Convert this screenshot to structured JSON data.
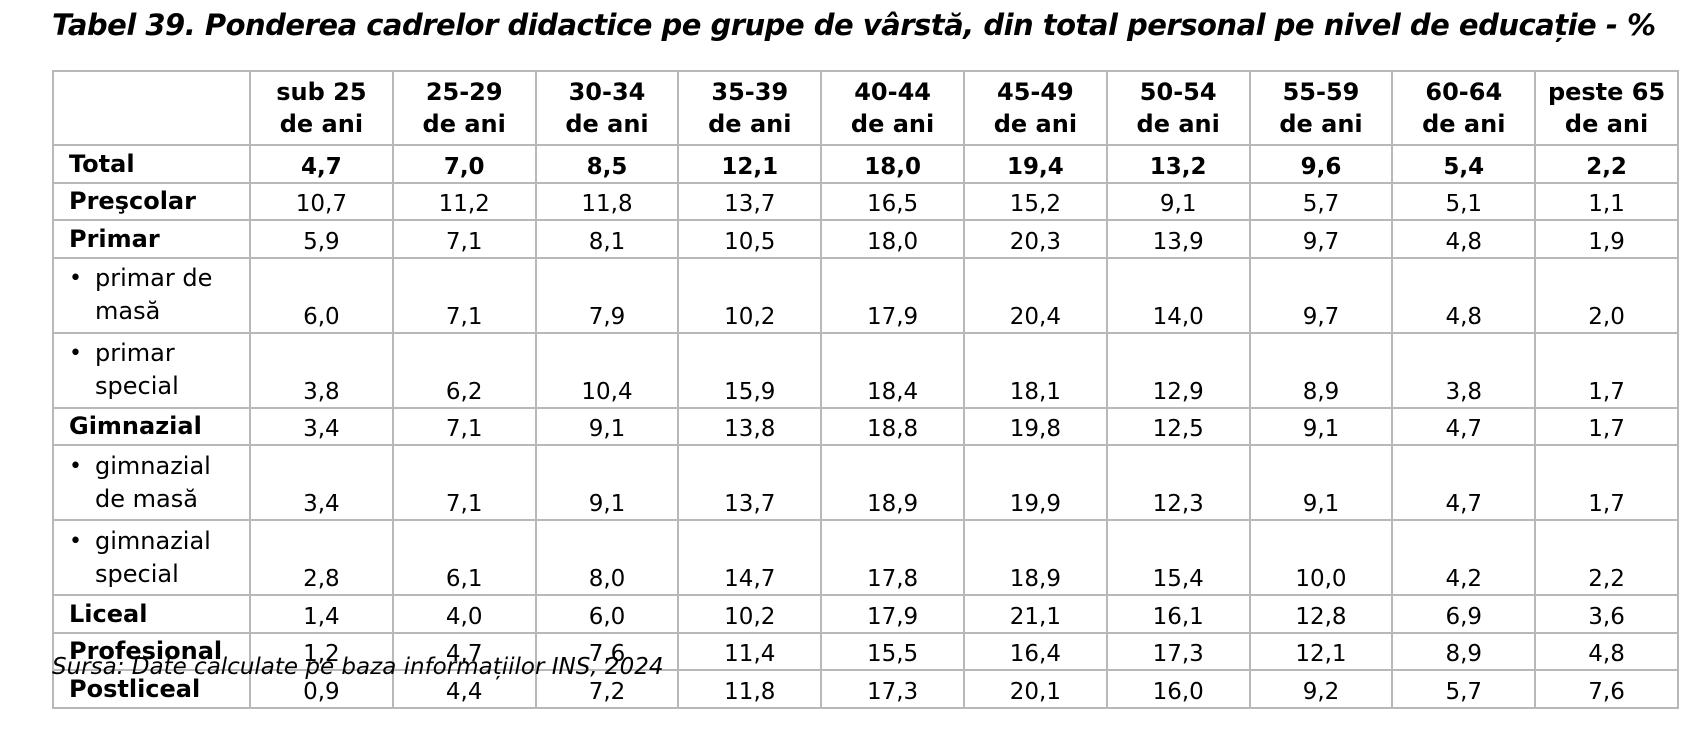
{
  "title": "Tabel 39. Ponderea cadrelor didactice pe grupe de vârstă, din total personal pe nivel de educație - %",
  "columns": [
    {
      "line1": "sub 25",
      "line2": "de ani"
    },
    {
      "line1": "25-29",
      "line2": "de ani"
    },
    {
      "line1": "30-34",
      "line2": "de ani"
    },
    {
      "line1": "35-39",
      "line2": "de ani"
    },
    {
      "line1": "40-44",
      "line2": "de ani"
    },
    {
      "line1": "45-49",
      "line2": "de ani"
    },
    {
      "line1": "50-54",
      "line2": "de ani"
    },
    {
      "line1": "55-59",
      "line2": "de ani"
    },
    {
      "line1": "60-64",
      "line2": "de ani"
    },
    {
      "line1": "peste 65",
      "line2": "de ani"
    }
  ],
  "rows": [
    {
      "label": "Total",
      "values": [
        "4,7",
        "7,0",
        "8,5",
        "12,1",
        "18,0",
        "19,4",
        "13,2",
        "9,6",
        "5,4",
        "2,2"
      ]
    },
    {
      "label": "Preşcolar",
      "values": [
        "10,7",
        "11,2",
        "11,8",
        "13,7",
        "16,5",
        "15,2",
        "9,1",
        "5,7",
        "5,1",
        "1,1"
      ]
    },
    {
      "label": "Primar",
      "values": [
        "5,9",
        "7,1",
        "8,1",
        "10,5",
        "18,0",
        "20,3",
        "13,9",
        "9,7",
        "4,8",
        "1,9"
      ]
    },
    {
      "bullet": "•",
      "label_line1": "primar de",
      "label_line2": "masă",
      "values": [
        "6,0",
        "7,1",
        "7,9",
        "10,2",
        "17,9",
        "20,4",
        "14,0",
        "9,7",
        "4,8",
        "2,0"
      ]
    },
    {
      "bullet": "•",
      "label_line1": "primar",
      "label_line2": "special",
      "values": [
        "3,8",
        "6,2",
        "10,4",
        "15,9",
        "18,4",
        "18,1",
        "12,9",
        "8,9",
        "3,8",
        "1,7"
      ]
    },
    {
      "label": "Gimnazial",
      "values": [
        "3,4",
        "7,1",
        "9,1",
        "13,8",
        "18,8",
        "19,8",
        "12,5",
        "9,1",
        "4,7",
        "1,7"
      ]
    },
    {
      "bullet": "•",
      "label_line1": "gimnazial",
      "label_line2": "de masă",
      "values": [
        "3,4",
        "7,1",
        "9,1",
        "13,7",
        "18,9",
        "19,9",
        "12,3",
        "9,1",
        "4,7",
        "1,7"
      ]
    },
    {
      "bullet": "•",
      "label_line1": "gimnazial",
      "label_line2": "special",
      "values": [
        "2,8",
        "6,1",
        "8,0",
        "14,7",
        "17,8",
        "18,9",
        "15,4",
        "10,0",
        "4,2",
        "2,2"
      ]
    },
    {
      "label": "Liceal",
      "values": [
        "1,4",
        "4,0",
        "6,0",
        "10,2",
        "17,9",
        "21,1",
        "16,1",
        "12,8",
        "6,9",
        "3,6"
      ]
    },
    {
      "label": "Profesional",
      "values": [
        "1,2",
        "4,7",
        "7,6",
        "11,4",
        "15,5",
        "16,4",
        "17,3",
        "12,1",
        "8,9",
        "4,8"
      ]
    },
    {
      "label": "Postliceal",
      "values": [
        "0,9",
        "4,4",
        "7,2",
        "11,8",
        "17,3",
        "20,1",
        "16,0",
        "9,2",
        "5,7",
        "7,6"
      ]
    }
  ],
  "source": "Sursa: Date calculate pe baza informațiilor INS, 2024"
}
